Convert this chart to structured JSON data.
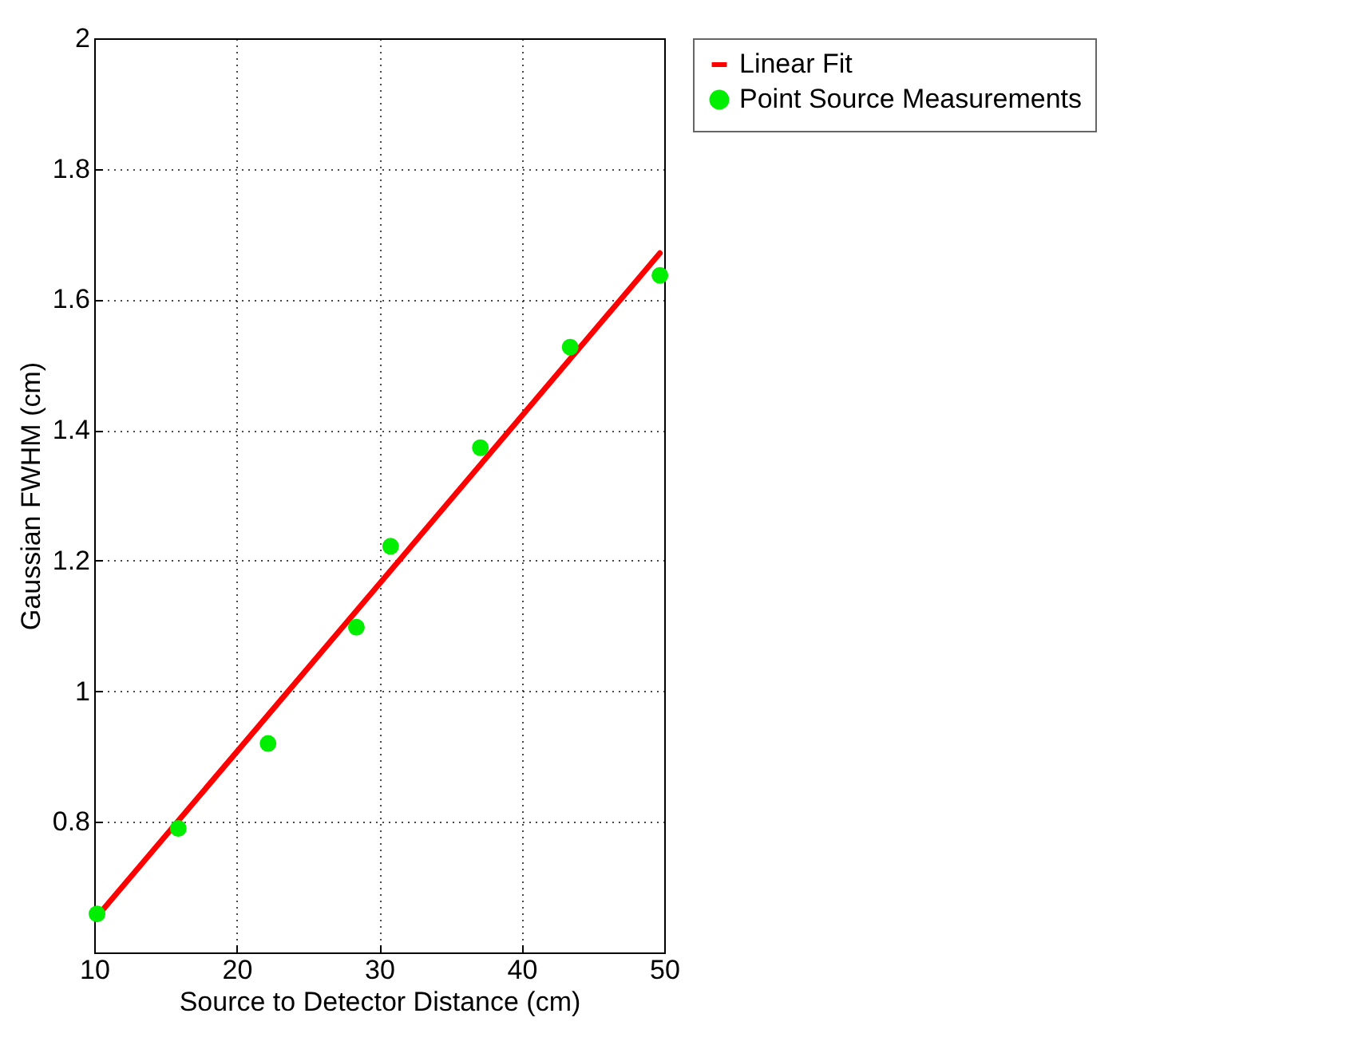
{
  "chart_data": {
    "type": "scatter",
    "xlabel": "Source to Detector Distance (cm)",
    "ylabel": "Gaussian FWHM (cm)",
    "xlim": [
      10,
      50
    ],
    "xticks": [
      10,
      20,
      30,
      40,
      50
    ],
    "ylim": [
      0.6,
      2
    ],
    "yticks": [
      0.8,
      1,
      1.2,
      1.4,
      1.6,
      1.8,
      2
    ],
    "grid": true,
    "legend": "top right",
    "series": [
      {
        "name": "Linear Fit",
        "type": "line",
        "color": "#ff0000",
        "x": [
          10.2,
          49.7
        ],
        "values": [
          0.655,
          1.671
        ]
      },
      {
        "name": "Point Source Measurements",
        "marker": "circle",
        "color": "#00ee00",
        "x": [
          10.2,
          15.9,
          22.2,
          28.4,
          30.8,
          37.1,
          43.4,
          49.7
        ],
        "values": [
          0.659,
          0.79,
          0.92,
          1.098,
          1.222,
          1.373,
          1.527,
          1.637
        ]
      }
    ]
  }
}
